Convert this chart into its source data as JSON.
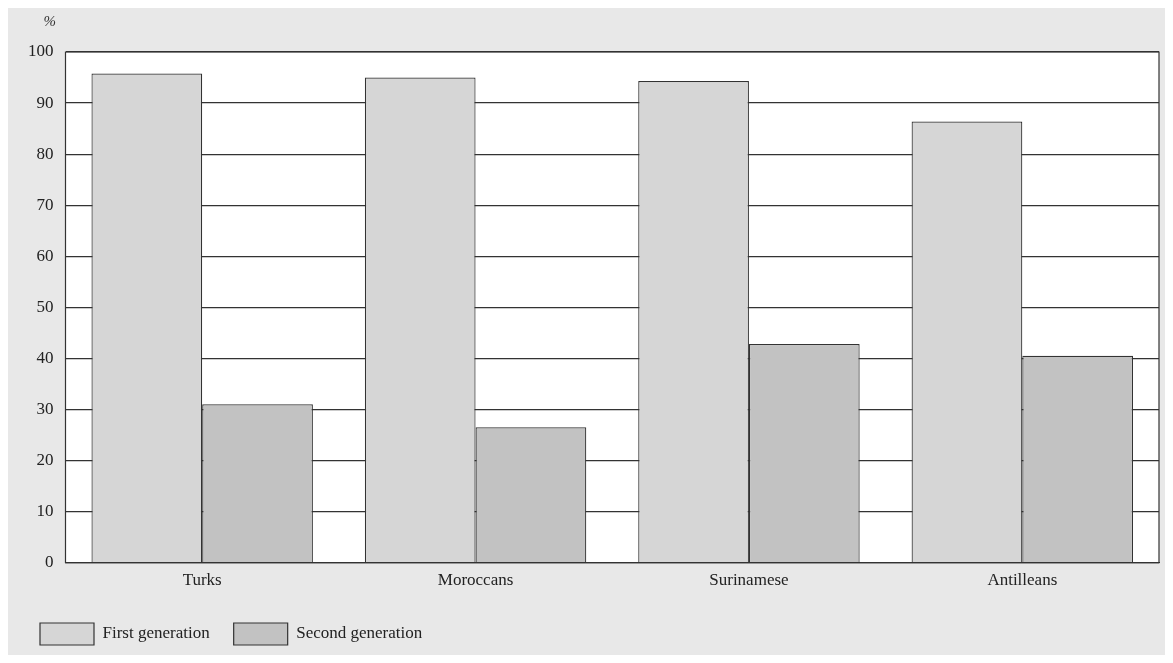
{
  "chart_data": {
    "type": "bar",
    "ylabel": "%",
    "categories": [
      "Turks",
      "Moroccans",
      "Surinamese",
      "Antilleans"
    ],
    "series": [
      {
        "name": "First generation",
        "color": "#d6d6d6",
        "values": [
          95.8,
          95,
          94.3,
          86.4
        ]
      },
      {
        "name": "Second generation",
        "color": "#c2c2c2",
        "values": [
          31,
          26.5,
          42.8,
          40.5
        ]
      }
    ],
    "ylim": [
      0,
      100
    ],
    "yticks": [
      0,
      10,
      20,
      30,
      40,
      50,
      60,
      70,
      80,
      90,
      100
    ],
    "grid": "y",
    "legend": "bottom left"
  }
}
